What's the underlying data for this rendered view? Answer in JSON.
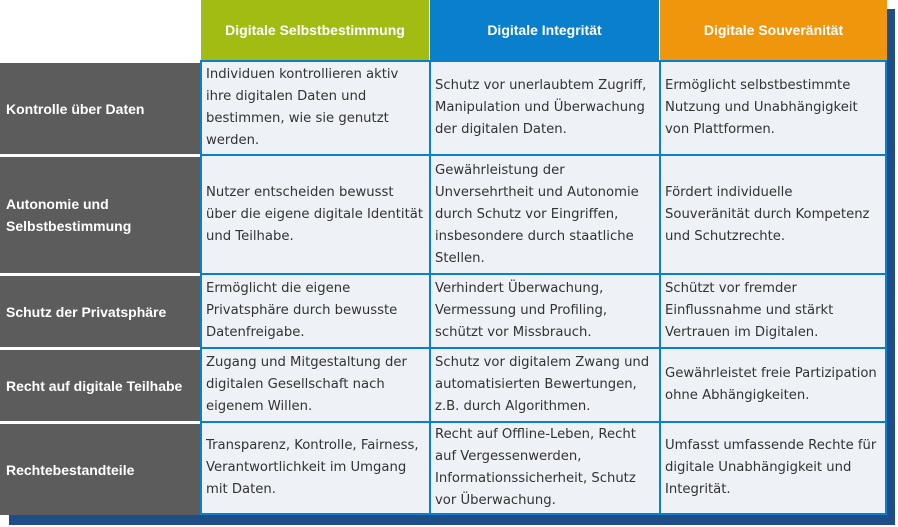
{
  "columns": [
    "Digitale Selbstbestimmung",
    "Digitale Integrität",
    "Digitale Souveränität"
  ],
  "rows": [
    {
      "label": "Kontrolle über Daten",
      "cells": [
        "Individuen kontrollieren aktiv ihre digitalen Daten und bestimmen, wie sie genutzt werden.",
        "Schutz vor unerlaubtem Zugriff, Manipulation und Überwachung der digitalen Daten.",
        "Ermöglicht selbstbestimmte Nutzung und Unabhängigkeit von Plattformen."
      ]
    },
    {
      "label": "Autonomie und Selbstbestimmung",
      "cells": [
        "Nutzer entscheiden bewusst über die eigene digitale Identität und Teilhabe.",
        "Gewährleistung der Unversehrtheit und Autonomie durch Schutz vor Eingriffen, insbesondere durch staatliche Stellen.",
        "Fördert individuelle Souveränität durch Kompetenz und Schutzrechte."
      ]
    },
    {
      "label": "Schutz der Privatsphäre",
      "cells": [
        "Ermöglicht die eigene Privatsphäre durch bewusste Datenfreigabe.",
        "Verhindert Überwachung, Vermessung und Profiling, schützt vor Missbrauch.",
        "Schützt vor fremder Einflussnahme und stärkt Vertrauen im Digitalen."
      ]
    },
    {
      "label": "Recht auf digitale Teilhabe",
      "cells": [
        "Zugang und Mitgestaltung der digitalen Gesellschaft nach eigenem Willen.",
        "Schutz vor digitalem Zwang und automatisierten Bewertungen, z.B. durch Algorithmen.",
        "Gewährleistet freie Partizipation ohne Abhängigkeiten."
      ]
    },
    {
      "label": "Rechtebestandteile",
      "cells": [
        "Transparenz, Kontrolle, Fairness, Verantwortlichkeit im Umgang mit Daten.",
        "Recht auf Offline-Leben, Recht auf Vergessenwerden, Informationssicherheit, Schutz vor Überwachung.",
        "Umfasst umfassende Rechte für digitale Unabhängigkeit und Integrität."
      ]
    }
  ]
}
